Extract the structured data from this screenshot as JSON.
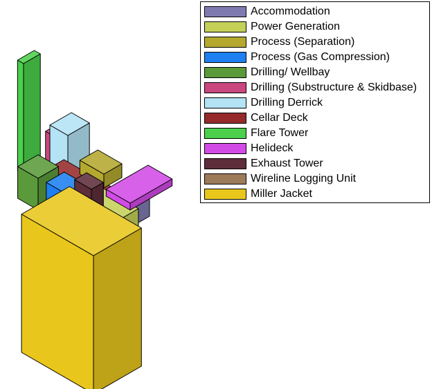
{
  "legend": {
    "items": [
      {
        "label": "Accommodation",
        "color": "#7f7bb1"
      },
      {
        "label": "Power Generation",
        "color": "#c4d159"
      },
      {
        "label": "Process (Separation)",
        "color": "#b4a82f"
      },
      {
        "label": "Process (Gas Compression)",
        "color": "#1e7ff0"
      },
      {
        "label": "Drilling/ Wellbay",
        "color": "#5a9a3a"
      },
      {
        "label": "Drilling (Substructure & Skidbase)",
        "color": "#c9477f"
      },
      {
        "label": "Drilling Derrick",
        "color": "#b3e3f4"
      },
      {
        "label": "Cellar Deck",
        "color": "#962a2a"
      },
      {
        "label": "Flare Tower",
        "color": "#4cd04c"
      },
      {
        "label": "Helideck",
        "color": "#d24be6"
      },
      {
        "label": "Exhaust Tower",
        "color": "#5e2e3b"
      },
      {
        "label": "Wireline Logging Unit",
        "color": "#9c7b5a"
      },
      {
        "label": "Miller Jacket",
        "color": "#e8c61c"
      }
    ]
  }
}
